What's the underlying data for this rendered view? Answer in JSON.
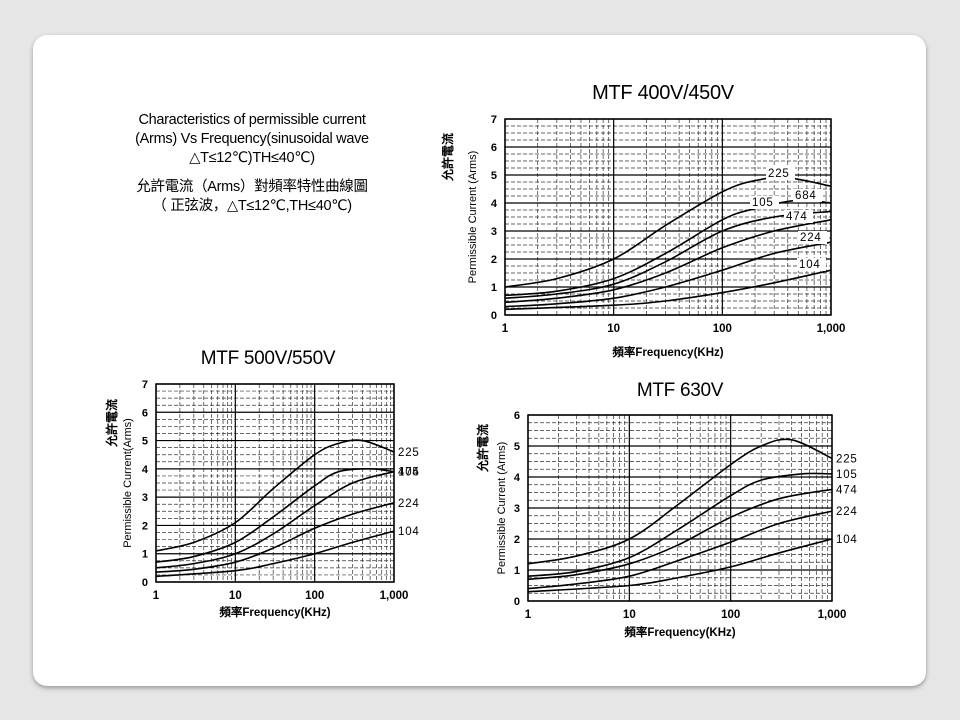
{
  "slide": {
    "description_en": [
      "Characteristics of permissible current",
      "(Arms) Vs Frequency(sinusoidal wave",
      "△T≤12℃)TH≤40℃)"
    ],
    "description_zh": [
      "允許電流（Arms）對頻率特性曲線圖",
      "（ 正弦波，△T≤12℃,TH≤40℃)"
    ]
  },
  "chart_data": [
    {
      "type": "line",
      "title": "MTF 400V/450V",
      "xlabel": "頻率Frequency(KHz)",
      "ylabel": "Permissible Current (Arms)",
      "ylabel_zh": "允許電流",
      "xscale": "log",
      "xlim": [
        1,
        1000
      ],
      "ylim": [
        0,
        7
      ],
      "x_ticks": [
        1,
        10,
        100,
        1000
      ],
      "x_tick_labels": [
        "1",
        "10",
        "100",
        "1,000"
      ],
      "y_ticks": [
        0,
        1,
        2,
        3,
        4,
        5,
        6,
        7
      ],
      "y_tick_labels": [
        "0",
        "1",
        "2",
        "3",
        "4",
        "5",
        "6",
        "7"
      ],
      "label_placement": "inside",
      "series": [
        {
          "name": "225",
          "x": [
            1,
            3,
            10,
            30,
            100,
            200,
            400,
            1000
          ],
          "y": [
            1.0,
            1.3,
            2.0,
            3.2,
            4.4,
            4.8,
            4.9,
            4.6
          ]
        },
        {
          "name": "684",
          "x": [
            1,
            3,
            10,
            30,
            100,
            200,
            500,
            1000
          ],
          "y": [
            0.7,
            0.85,
            1.3,
            2.2,
            3.4,
            3.8,
            4.1,
            4.0
          ]
        },
        {
          "name": "105",
          "x": [
            1,
            3,
            10,
            30,
            100,
            300,
            1000
          ],
          "y": [
            0.6,
            0.75,
            1.1,
            1.9,
            3.0,
            3.5,
            3.7
          ]
        },
        {
          "name": "474",
          "x": [
            1,
            3,
            10,
            30,
            100,
            300,
            1000
          ],
          "y": [
            0.45,
            0.6,
            0.9,
            1.5,
            2.4,
            3.0,
            3.4
          ]
        },
        {
          "name": "224",
          "x": [
            1,
            3,
            10,
            30,
            100,
            300,
            1000
          ],
          "y": [
            0.3,
            0.4,
            0.6,
            1.0,
            1.6,
            2.2,
            2.6
          ]
        },
        {
          "name": "104",
          "x": [
            1,
            10,
            30,
            100,
            300,
            1000
          ],
          "y": [
            0.2,
            0.35,
            0.5,
            0.8,
            1.15,
            1.6
          ]
        }
      ]
    },
    {
      "type": "line",
      "title": "MTF 500V/550V",
      "xlabel": "頻率Frequency(KHz)",
      "ylabel": "Permissible Current(Arms)",
      "ylabel_zh": "允許電流",
      "xscale": "log",
      "xlim": [
        1,
        1000
      ],
      "ylim": [
        0,
        7
      ],
      "x_ticks": [
        1,
        10,
        100,
        1000
      ],
      "x_tick_labels": [
        "1",
        "10",
        "100",
        "1,000"
      ],
      "y_ticks": [
        0,
        1,
        2,
        3,
        4,
        5,
        6,
        7
      ],
      "y_tick_labels": [
        "0",
        "1",
        "2",
        "3",
        "4",
        "5",
        "6",
        "7"
      ],
      "label_placement": "right",
      "series": [
        {
          "name": "225",
          "x": [
            1,
            3,
            10,
            30,
            100,
            200,
            400,
            1000
          ],
          "y": [
            1.1,
            1.4,
            2.1,
            3.3,
            4.5,
            4.9,
            5.0,
            4.6
          ]
        },
        {
          "name": "105",
          "x": [
            1,
            3,
            10,
            30,
            100,
            200,
            500,
            1000
          ],
          "y": [
            0.7,
            0.9,
            1.4,
            2.3,
            3.4,
            3.9,
            4.0,
            3.9
          ]
        },
        {
          "name": "474",
          "x": [
            1,
            3,
            10,
            30,
            100,
            300,
            1000
          ],
          "y": [
            0.5,
            0.65,
            1.0,
            1.7,
            2.7,
            3.5,
            3.9
          ]
        },
        {
          "name": "224",
          "x": [
            1,
            3,
            10,
            30,
            100,
            300,
            1000
          ],
          "y": [
            0.35,
            0.45,
            0.7,
            1.2,
            1.9,
            2.4,
            2.8
          ]
        },
        {
          "name": "104",
          "x": [
            1,
            10,
            30,
            100,
            300,
            1000
          ],
          "y": [
            0.2,
            0.4,
            0.65,
            1.0,
            1.4,
            1.8
          ]
        }
      ]
    },
    {
      "type": "line",
      "title": "MTF 630V",
      "xlabel": "頻率Frequency(KHz)",
      "ylabel": "Permissible Current (Arms)",
      "ylabel_zh": "允許電流",
      "xscale": "log",
      "xlim": [
        1,
        1000
      ],
      "ylim": [
        0,
        6
      ],
      "x_ticks": [
        1,
        10,
        100,
        1000
      ],
      "x_tick_labels": [
        "1",
        "10",
        "100",
        "1,000"
      ],
      "y_ticks": [
        0,
        1,
        2,
        3,
        4,
        5,
        6
      ],
      "y_tick_labels": [
        "0",
        "1",
        "2",
        "3",
        "4",
        "5",
        "6"
      ],
      "label_placement": "right",
      "series": [
        {
          "name": "225",
          "x": [
            1,
            3,
            10,
            30,
            100,
            200,
            400,
            1000
          ],
          "y": [
            1.2,
            1.45,
            2.0,
            3.1,
            4.4,
            5.0,
            5.2,
            4.6
          ]
        },
        {
          "name": "105",
          "x": [
            1,
            3,
            10,
            30,
            100,
            200,
            500,
            1000
          ],
          "y": [
            0.8,
            0.95,
            1.4,
            2.3,
            3.4,
            3.9,
            4.1,
            4.1
          ]
        },
        {
          "name": "474",
          "x": [
            1,
            3,
            10,
            30,
            100,
            300,
            1000
          ],
          "y": [
            0.7,
            0.85,
            1.2,
            1.8,
            2.7,
            3.3,
            3.6
          ]
        },
        {
          "name": "224",
          "x": [
            1,
            3,
            10,
            30,
            100,
            300,
            1000
          ],
          "y": [
            0.4,
            0.55,
            0.8,
            1.3,
            1.9,
            2.5,
            2.9
          ]
        },
        {
          "name": "104",
          "x": [
            1,
            10,
            30,
            100,
            300,
            1000
          ],
          "y": [
            0.3,
            0.5,
            0.75,
            1.1,
            1.55,
            2.0
          ]
        }
      ]
    }
  ]
}
